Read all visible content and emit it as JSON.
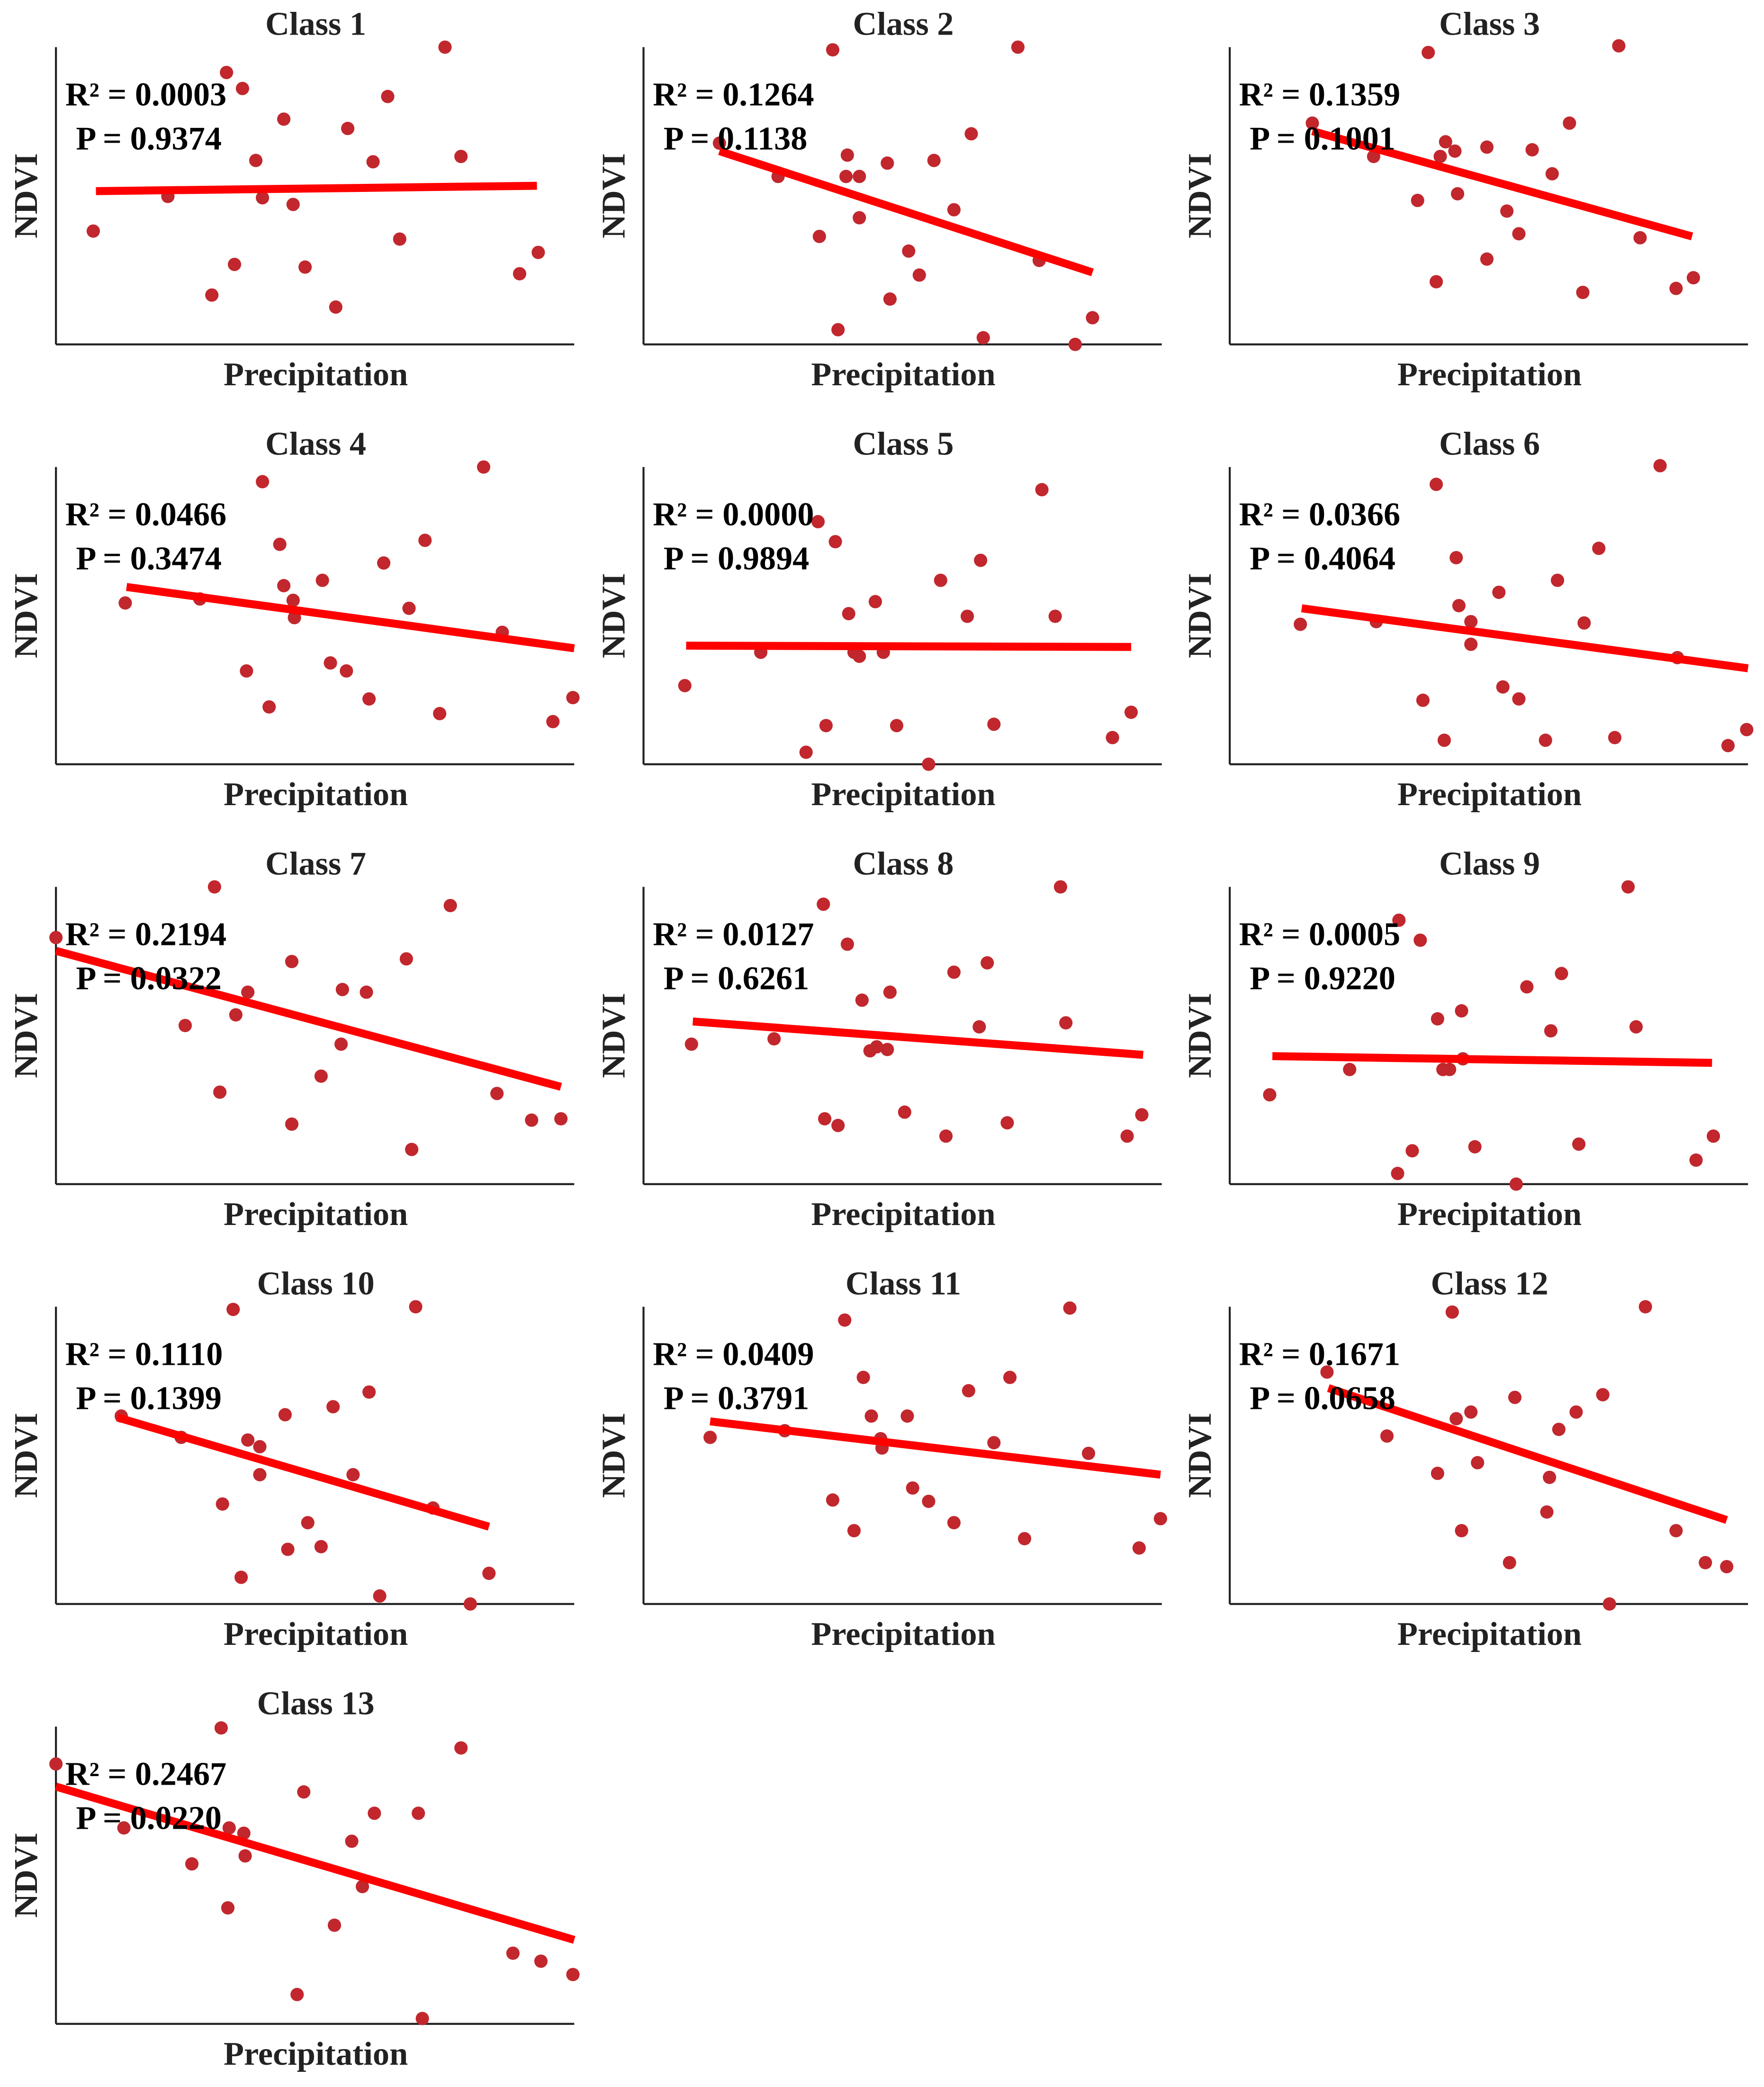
{
  "chart_data": [
    {
      "type": "scatter",
      "title": "Class 1",
      "xlabel": "Precipitation",
      "ylabel": "NDVI",
      "annotations": [
        "R² = 0.0003",
        "P = 0.9374"
      ],
      "color": "#c1272d",
      "xlim": [
        0,
        389
      ],
      "ylim": [
        0,
        223
      ],
      "x": [
        28,
        84,
        117,
        128,
        134,
        140,
        150,
        155,
        171,
        178,
        187,
        210,
        219,
        238,
        249,
        258,
        292,
        304,
        348,
        362
      ],
      "y": [
        85,
        111,
        37,
        204,
        60,
        192,
        138,
        110,
        169,
        105,
        58,
        28,
        162,
        137,
        186,
        79,
        223,
        141,
        53,
        69
      ],
      "fit": {
        "color": "#ff0000",
        "x": [
          30,
          361
        ],
        "y": [
          115,
          119
        ]
      }
    },
    {
      "type": "scatter",
      "title": "Class 2",
      "xlabel": "Precipitation",
      "ylabel": "NDVI",
      "annotations": [
        "R² = 0.1264",
        "P = 0.1138"
      ],
      "color": "#c1272d",
      "xlim": [
        0,
        389
      ],
      "ylim": [
        0,
        223
      ],
      "x": [
        57,
        101,
        132,
        142,
        146,
        153,
        152,
        162,
        162,
        183,
        185,
        199,
        207,
        218,
        233,
        246,
        255,
        281,
        297,
        324,
        337
      ],
      "y": [
        151,
        126,
        81,
        221,
        11,
        142,
        126,
        126,
        95,
        136,
        34,
        70,
        52,
        138,
        101,
        158,
        5,
        223,
        63,
        0,
        20
      ],
      "fit": {
        "color": "#ff0000",
        "x": [
          57,
          337
        ],
        "y": [
          145,
          54
        ]
      }
    },
    {
      "type": "scatter",
      "title": "Class 3",
      "xlabel": "Precipitation",
      "ylabel": "NDVI",
      "annotations": [
        "R² = 0.1359",
        "P = 0.1001"
      ],
      "color": "#c1272d",
      "xlim": [
        0,
        389
      ],
      "ylim": [
        0,
        223
      ],
      "x": [
        62,
        108,
        141,
        149,
        155,
        158,
        162,
        169,
        171,
        193,
        193,
        208,
        217,
        227,
        242,
        255,
        265,
        292,
        308,
        335,
        348
      ],
      "y": [
        166,
        141,
        108,
        219,
        47,
        141,
        152,
        145,
        113,
        148,
        64,
        100,
        83,
        146,
        128,
        166,
        39,
        224,
        80,
        42,
        50
      ],
      "fit": {
        "color": "#ff0000",
        "x": [
          62,
          347
        ],
        "y": [
          160,
          81
        ]
      }
    },
    {
      "type": "scatter",
      "title": "Class 4",
      "xlabel": "Precipitation",
      "ylabel": "NDVI",
      "annotations": [
        "R² = 0.0466",
        "P = 0.3474"
      ],
      "color": "#c1272d",
      "xlim": [
        0,
        389
      ],
      "ylim": [
        0,
        223
      ],
      "x": [
        52,
        108,
        143,
        155,
        160,
        168,
        171,
        178,
        179,
        200,
        206,
        218,
        235,
        246,
        265,
        277,
        288,
        321,
        335,
        373,
        388
      ],
      "y": [
        121,
        124,
        70,
        212,
        43,
        165,
        134,
        123,
        110,
        138,
        76,
        70,
        49,
        151,
        117,
        168,
        38,
        223,
        99,
        32,
        50
      ],
      "fit": {
        "color": "#ff0000",
        "x": [
          53,
          389
        ],
        "y": [
          133,
          87
        ]
      }
    },
    {
      "type": "scatter",
      "title": "Class 5",
      "xlabel": "Precipitation",
      "ylabel": "NDVI",
      "annotations": [
        "R² = 0.0000",
        "P = 0.9894"
      ],
      "color": "#c1272d",
      "xlim": [
        0,
        389
      ],
      "ylim": [
        0,
        223
      ],
      "x": [
        31,
        88,
        122,
        137,
        131,
        144,
        154,
        158,
        162,
        174,
        180,
        190,
        214,
        223,
        243,
        253,
        263,
        299,
        309,
        352,
        366
      ],
      "y": [
        59,
        84,
        9,
        29,
        182,
        167,
        113,
        84,
        81,
        122,
        84,
        29,
        0,
        138,
        111,
        153,
        30,
        206,
        111,
        20,
        39
      ],
      "fit": {
        "color": "#ff0000",
        "x": [
          32,
          366
        ],
        "y": [
          89,
          88
        ]
      }
    },
    {
      "type": "scatter",
      "title": "Class 6",
      "xlabel": "Precipitation",
      "ylabel": "NDVI",
      "annotations": [
        "R² = 0.0366",
        "P = 0.4064"
      ],
      "color": "#c1272d",
      "xlim": [
        0,
        389
      ],
      "ylim": [
        0,
        223
      ],
      "x": [
        53,
        110,
        145,
        155,
        161,
        170,
        172,
        181,
        181,
        202,
        205,
        217,
        237,
        246,
        266,
        277,
        289,
        323,
        336,
        374,
        388
      ],
      "y": [
        105,
        107,
        48,
        210,
        18,
        155,
        119,
        107,
        90,
        129,
        58,
        49,
        18,
        138,
        106,
        162,
        20,
        224,
        80,
        14,
        26
      ],
      "fit": {
        "color": "#ff0000",
        "x": [
          54,
          389
        ],
        "y": [
          117,
          72
        ]
      }
    },
    {
      "type": "scatter",
      "title": "Class 7",
      "xlabel": "Precipitation",
      "ylabel": "NDVI",
      "annotations": [
        "R² = 0.2194",
        "P = 0.0322"
      ],
      "color": "#c1272d",
      "xlim": [
        0,
        389
      ],
      "ylim": [
        0,
        223
      ],
      "x": [
        0,
        97,
        119,
        123,
        135,
        144,
        177,
        177,
        199,
        214,
        215,
        233,
        263,
        267,
        296,
        331,
        357,
        379
      ],
      "y": [
        185,
        119,
        223,
        69,
        127,
        144,
        167,
        45,
        81,
        105,
        146,
        144,
        169,
        26,
        209,
        68,
        48,
        49
      ],
      "fit": {
        "color": "#ff0000",
        "x": [
          0,
          379
        ],
        "y": [
          175,
          73
        ]
      }
    },
    {
      "type": "scatter",
      "title": "Class 8",
      "xlabel": "Precipitation",
      "ylabel": "NDVI",
      "annotations": [
        "R² = 0.0127",
        "P = 0.6261"
      ],
      "color": "#c1272d",
      "xlim": [
        0,
        389
      ],
      "ylim": [
        0,
        223
      ],
      "x": [
        36,
        98,
        135,
        136,
        146,
        153,
        164,
        170,
        175,
        183,
        185,
        196,
        227,
        233,
        252,
        258,
        273,
        313,
        317,
        363,
        374
      ],
      "y": [
        105,
        109,
        210,
        49,
        44,
        180,
        138,
        100,
        103,
        101,
        144,
        54,
        36,
        159,
        118,
        166,
        46,
        223,
        121,
        36,
        52
      ],
      "fit": {
        "color": "#ff0000",
        "x": [
          37,
          375
        ],
        "y": [
          122,
          97
        ]
      }
    },
    {
      "type": "scatter",
      "title": "Class 9",
      "xlabel": "Precipitation",
      "ylabel": "NDVI",
      "annotations": [
        "R² = 0.0005",
        "P = 0.9220"
      ],
      "color": "#c1272d",
      "xlim": [
        0,
        389
      ],
      "ylim": [
        0,
        223
      ],
      "x": [
        30,
        90,
        126,
        127,
        137,
        143,
        156,
        160,
        165,
        174,
        175,
        184,
        215,
        223,
        241,
        249,
        262,
        299,
        305,
        350,
        363
      ],
      "y": [
        67,
        86,
        8,
        198,
        25,
        183,
        124,
        86,
        86,
        130,
        94,
        28,
        0,
        148,
        115,
        158,
        30,
        223,
        118,
        18,
        36
      ],
      "fit": {
        "color": "#ff0000",
        "x": [
          32,
          362
        ],
        "y": [
          96,
          91
        ]
      }
    },
    {
      "type": "scatter",
      "title": "Class 10",
      "xlabel": "Precipitation",
      "ylabel": "NDVI",
      "annotations": [
        "R² = 0.1110",
        "P = 0.1399"
      ],
      "color": "#c1272d",
      "xlim": [
        0,
        389
      ],
      "ylim": [
        0,
        223
      ],
      "x": [
        49,
        94,
        125,
        133,
        139,
        144,
        153,
        153,
        172,
        174,
        189,
        199,
        208,
        223,
        235,
        243,
        270,
        283,
        311,
        325
      ],
      "y": [
        141,
        125,
        75,
        221,
        20,
        123,
        118,
        97,
        142,
        41,
        61,
        43,
        148,
        97,
        159,
        6,
        223,
        72,
        0,
        23
      ],
      "fit": {
        "color": "#ff0000",
        "x": [
          46,
          325
        ],
        "y": [
          140,
          58
        ]
      }
    },
    {
      "type": "scatter",
      "title": "Class 11",
      "xlabel": "Precipitation",
      "ylabel": "NDVI",
      "annotations": [
        "R² = 0.0409",
        "P = 0.3791"
      ],
      "color": "#c1272d",
      "xlim": [
        0,
        389
      ],
      "ylim": [
        0,
        223
      ],
      "x": [
        50,
        106,
        142,
        151,
        158,
        165,
        171,
        178,
        179,
        198,
        202,
        214,
        233,
        244,
        263,
        275,
        286,
        320,
        334,
        372,
        388
      ],
      "y": [
        125,
        130,
        78,
        213,
        55,
        170,
        141,
        124,
        117,
        141,
        87,
        77,
        61,
        160,
        121,
        170,
        49,
        222,
        113,
        42,
        64
      ],
      "fit": {
        "color": "#ff0000",
        "x": [
          50,
          388
        ],
        "y": [
          137,
          97
        ]
      }
    },
    {
      "type": "scatter",
      "title": "Class 12",
      "xlabel": "Precipitation",
      "ylabel": "NDVI",
      "annotations": [
        "R² = 0.1671",
        "P = 0.0658"
      ],
      "color": "#c1272d",
      "xlim": [
        0,
        389
      ],
      "ylim": [
        0,
        223
      ],
      "x": [
        73,
        118,
        156,
        167,
        170,
        174,
        181,
        186,
        210,
        214,
        238,
        240,
        247,
        260,
        280,
        285,
        312,
        335,
        357,
        373
      ],
      "y": [
        174,
        126,
        98,
        219,
        139,
        55,
        144,
        106,
        31,
        155,
        69,
        95,
        131,
        144,
        157,
        0,
        223,
        55,
        31,
        28
      ],
      "fit": {
        "color": "#ff0000",
        "x": [
          74,
          373
        ],
        "y": [
          162,
          63
        ]
      }
    },
    {
      "type": "scatter",
      "title": "Class 13",
      "xlabel": "Precipitation",
      "ylabel": "NDVI",
      "annotations": [
        "R² = 0.2467",
        "P = 0.0220"
      ],
      "color": "#c1272d",
      "xlim": [
        0,
        389
      ],
      "ylim": [
        0,
        223
      ],
      "x": [
        0,
        51,
        102,
        124,
        129,
        130,
        141,
        142,
        181,
        186,
        209,
        222,
        230,
        239,
        272,
        275,
        304,
        343,
        364,
        388
      ],
      "y": [
        195,
        147,
        120,
        222,
        87,
        147,
        143,
        126,
        22,
        174,
        74,
        137,
        103,
        158,
        158,
        4,
        207,
        53,
        47,
        37
      ],
      "fit": {
        "color": "#ff0000",
        "x": [
          0,
          389
        ],
        "y": [
          178,
          63
        ]
      }
    }
  ]
}
